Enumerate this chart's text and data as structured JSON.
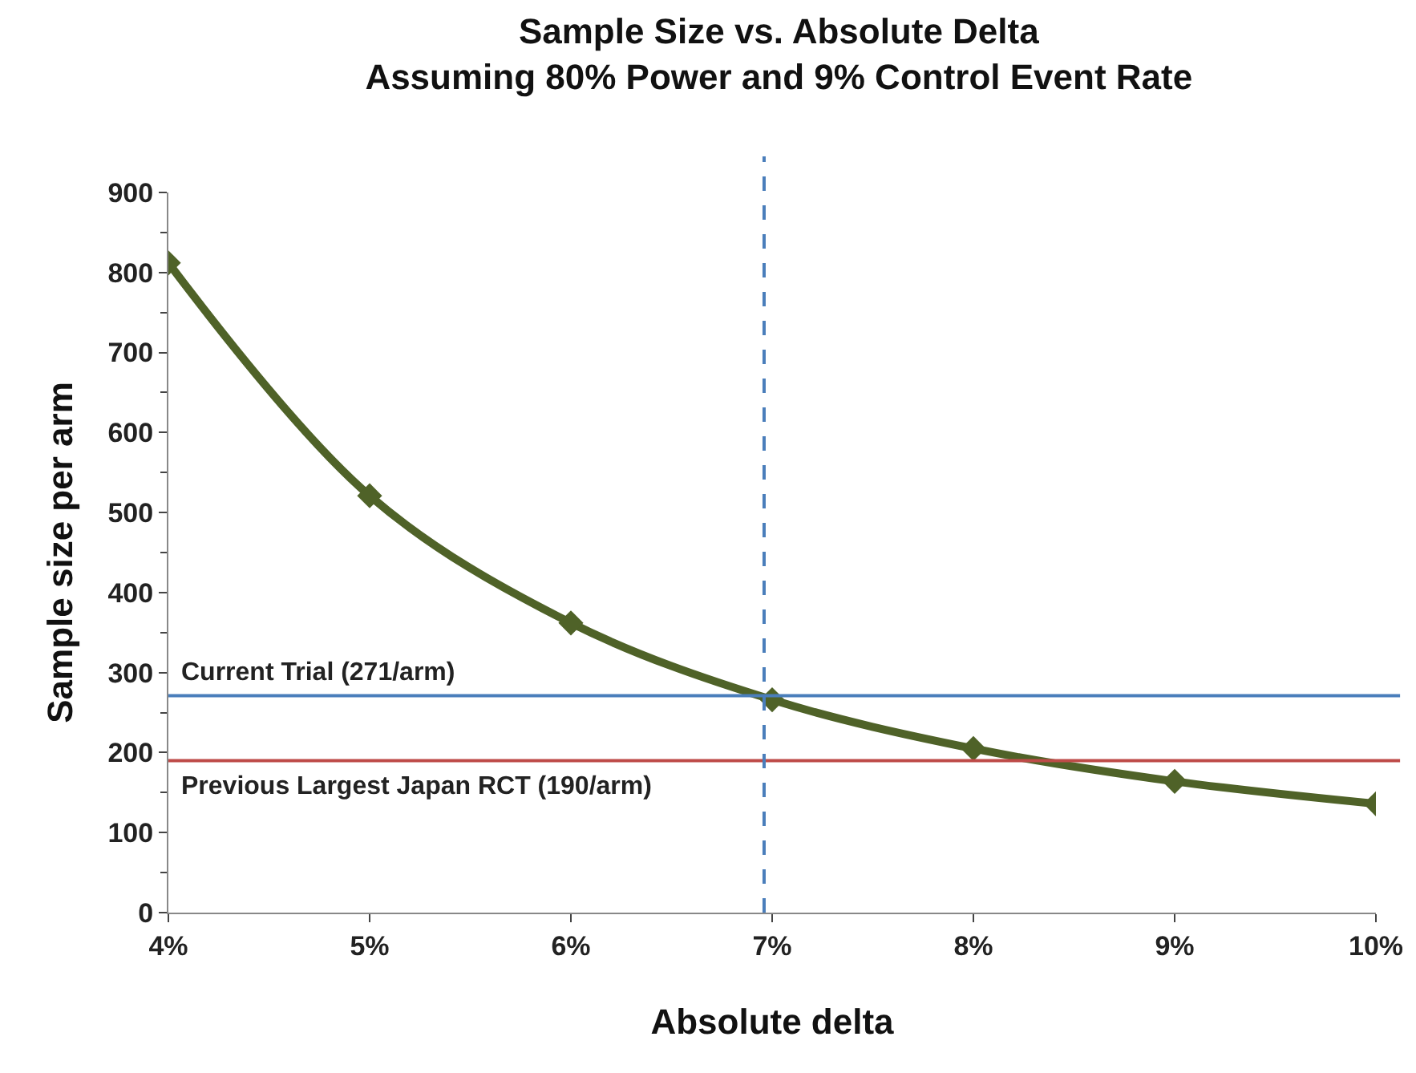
{
  "chart_data": {
    "type": "line",
    "title": "Sample Size vs. Absolute Delta\nAssuming 80% Power and 9% Control Event Rate",
    "xlabel": "Absolute delta",
    "ylabel": "Sample size per arm",
    "x": [
      4,
      5,
      6,
      7,
      8,
      9,
      10
    ],
    "series": [
      {
        "color": "#4f6228",
        "values": [
          812,
          521,
          362,
          266,
          205,
          164,
          136
        ]
      }
    ],
    "xlim": [
      4,
      10
    ],
    "xticks": [
      {
        "value": 4,
        "label": "4%"
      },
      {
        "value": 5,
        "label": "5%"
      },
      {
        "value": 6,
        "label": "6%"
      },
      {
        "value": 7,
        "label": "7%"
      },
      {
        "value": 8,
        "label": "8%"
      },
      {
        "value": 9,
        "label": "9%"
      },
      {
        "value": 10,
        "label": "10%"
      }
    ],
    "ylim": [
      0,
      900
    ],
    "yticks": [
      0,
      100,
      200,
      300,
      400,
      500,
      600,
      700,
      800,
      900
    ],
    "grid": false,
    "marker": "diamond",
    "line_style": "solid",
    "ref_lines": [
      {
        "axis": "y",
        "value": 271,
        "label": "Current Trial (271/arm)",
        "color": "#4a7ebb",
        "line_style": "solid"
      },
      {
        "axis": "y",
        "value": 190,
        "label": "Previous Largest Japan RCT (190/arm)",
        "color": "#be4b48",
        "line_style": "solid"
      },
      {
        "axis": "x",
        "value": 6.96,
        "label": null,
        "color": "#4a7ebb",
        "line_style": "dashed"
      }
    ]
  }
}
